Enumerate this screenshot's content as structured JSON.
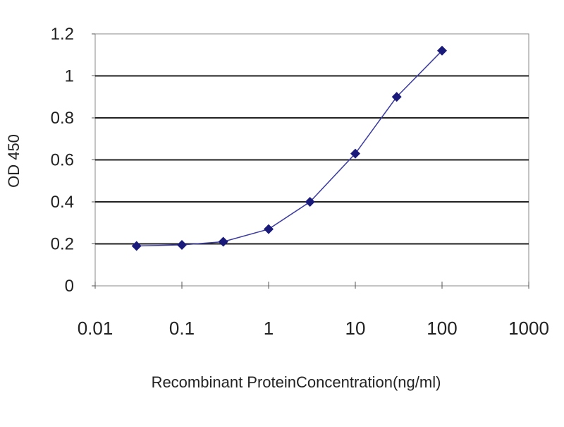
{
  "chart_data": {
    "type": "line",
    "title": "",
    "xlabel": "Recombinant ProteinConcentration(ng/ml)",
    "ylabel": "OD 450",
    "x_scale": "log",
    "xlim": [
      0.01,
      1000
    ],
    "ylim": [
      0,
      1.2
    ],
    "x_ticks": [
      "0.01",
      "0.1",
      "1",
      "10",
      "100",
      "1000"
    ],
    "y_ticks": [
      "0",
      "0.2",
      "0.4",
      "0.6",
      "0.8",
      "1",
      "1.2"
    ],
    "grid": "horizontal",
    "series": [
      {
        "x": [
          0.03,
          0.1,
          0.3,
          1,
          3,
          10,
          30,
          100
        ],
        "y": [
          0.19,
          0.195,
          0.21,
          0.27,
          0.4,
          0.63,
          0.9,
          1.12
        ],
        "color": "#1a1a7a",
        "marker": "diamond"
      }
    ]
  }
}
